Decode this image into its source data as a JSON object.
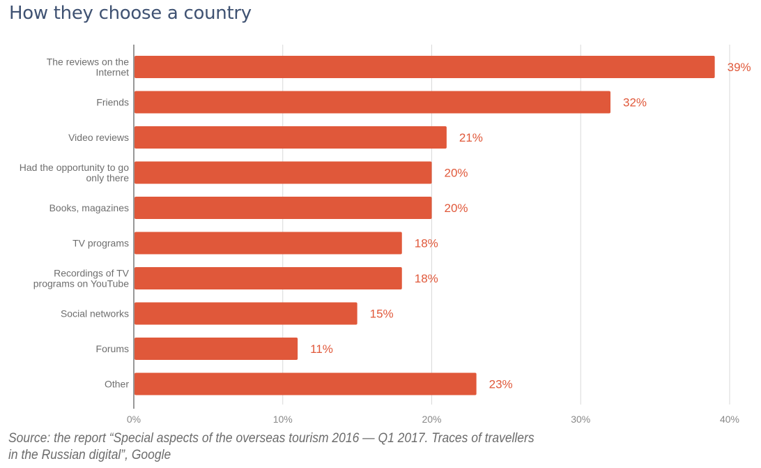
{
  "page": {
    "title": "How they choose a country",
    "source_line1": "Source: the report “Special aspects of the overseas tourism 2016 — Q1 2017. Traces of travellers",
    "source_line2": "in the Russian digital”, Google"
  },
  "colors": {
    "bar": "#e0583a",
    "label": "#e0583a",
    "grid": "#d9d9d9",
    "axis": "#777777",
    "tick_text": "#888888",
    "title": "#3f5272"
  },
  "chart_data": {
    "type": "bar",
    "orientation": "horizontal",
    "title": "How they choose a country",
    "xlabel": "",
    "ylabel": "",
    "xlim": [
      0,
      40
    ],
    "x_ticks": [
      0,
      10,
      20,
      30,
      40
    ],
    "x_tick_labels": [
      "0%",
      "10%",
      "20%",
      "30%",
      "40%"
    ],
    "grid": true,
    "categories": [
      [
        "The reviews on the",
        "Internet"
      ],
      [
        "Friends"
      ],
      [
        "Video reviews"
      ],
      [
        "Had the opportunity to go",
        "only there"
      ],
      [
        "Books, magazines"
      ],
      [
        "TV programs"
      ],
      [
        "Recordings of TV",
        "programs on YouTube"
      ],
      [
        "Social networks"
      ],
      [
        "Forums"
      ],
      [
        "Other"
      ]
    ],
    "values": [
      39,
      32,
      21,
      20,
      20,
      18,
      18,
      15,
      11,
      23
    ],
    "value_labels": [
      "39%",
      "32%",
      "21%",
      "20%",
      "20%",
      "18%",
      "18%",
      "15%",
      "11%",
      "23%"
    ]
  }
}
